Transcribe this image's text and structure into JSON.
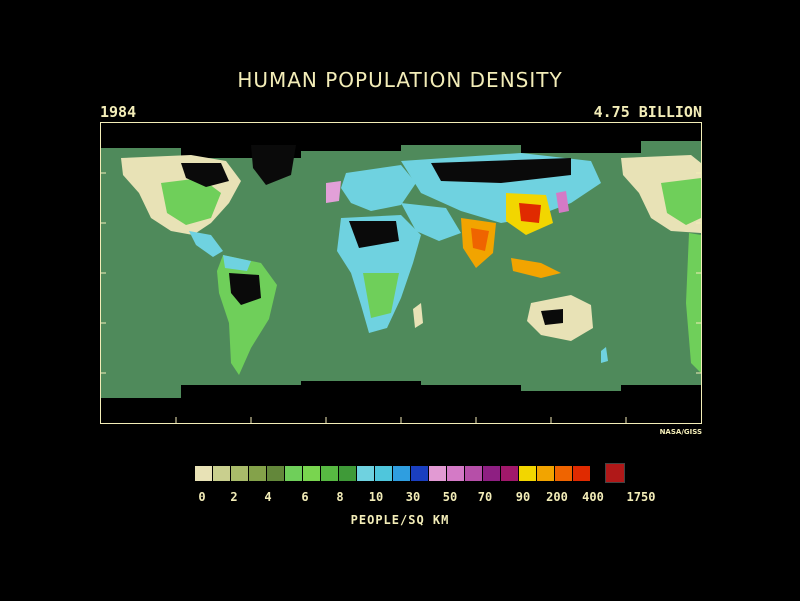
{
  "title": "HUMAN POPULATION DENSITY",
  "year": "1984",
  "total_population": "4.75 BILLION",
  "credit": "NASA/GISS",
  "legend": {
    "unit_label": "PEOPLE/SQ KM",
    "tick_labels": [
      "0",
      "2",
      "4",
      "6",
      "8",
      "10",
      "30",
      "50",
      "70",
      "90",
      "200",
      "400"
    ],
    "max_label": "1750",
    "colors": [
      "#e8e2b6",
      "#c9cf8e",
      "#a9bb6a",
      "#84a24a",
      "#63873a",
      "#6fcf5a",
      "#79d54f",
      "#57b942",
      "#3f9a38",
      "#6fd2e0",
      "#4fc6dc",
      "#2f9ee0",
      "#1a3fc0",
      "#e29ad3",
      "#d47ac6",
      "#b64fa8",
      "#8e1f82",
      "#a0186a",
      "#f2d600",
      "#f2a400",
      "#ef6400",
      "#e02a00"
    ],
    "max_color": "#b01818"
  },
  "map": {
    "ocean_color": "#4f8a5b",
    "land_low_color": "#e8e2b6",
    "land_mid_color": "#6fcf5a",
    "land_cyan_color": "#6fd2e0",
    "land_black_color": "#0a0a0a",
    "ice_color": "#000000"
  }
}
